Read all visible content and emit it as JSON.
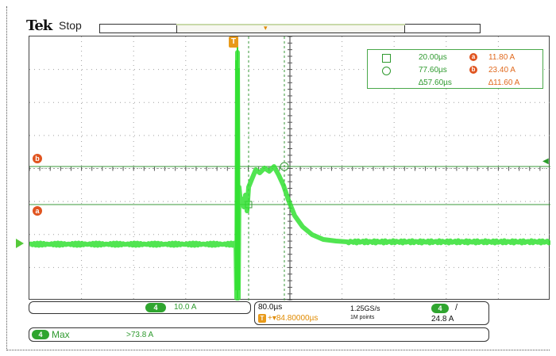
{
  "header": {
    "brand": "Tek",
    "status": "Stop"
  },
  "markers": {
    "a": "a",
    "b": "b",
    "trigger": "T",
    "channel": "4"
  },
  "readout": {
    "cursor1_time": "20.00µs",
    "cursor2_time": "77.60µs",
    "delta_time": "∆57.60µs",
    "a_value": "11.80 A",
    "b_value": "23.40 A",
    "delta_value": "∆11.60 A"
  },
  "channel": {
    "id": "4",
    "scale": "10.0 A"
  },
  "horizontal": {
    "scale": "80.0µs",
    "position": "+▾84.80000µs",
    "sample_rate": "1.25GS/s",
    "record_length": "1M points",
    "trigger_source": "4",
    "trigger_slope": "/",
    "trigger_level": "24.8 A"
  },
  "measurement": {
    "channel": "4",
    "name": "Max",
    "value": ">73.8 A"
  },
  "colors": {
    "trace": "#33e033",
    "cursor": "#2f9a2f",
    "marker": "#e0541f",
    "trigger": "#e89a1a"
  }
}
